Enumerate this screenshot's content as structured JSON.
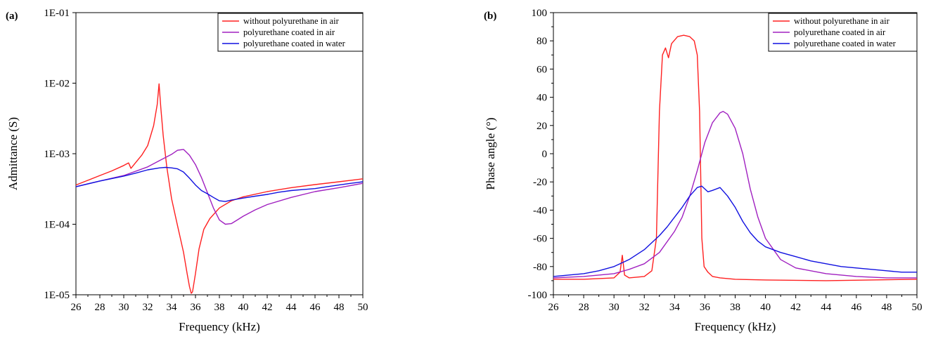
{
  "chart_data": [
    {
      "type": "line",
      "panel_label": "(a)",
      "xlabel": "Frequency (kHz)",
      "ylabel": "Admittance (S)",
      "xlim": [
        26,
        50
      ],
      "ylim": [
        1e-05,
        0.1
      ],
      "yscale": "log",
      "x_ticks": [
        "26",
        "28",
        "30",
        "32",
        "34",
        "36",
        "38",
        "40",
        "42",
        "44",
        "46",
        "48",
        "50"
      ],
      "y_ticks": [
        "1E-05",
        "1E-04",
        "1E-03",
        "1E-02",
        "1E-01"
      ],
      "legend_position": "top-right",
      "grid": false,
      "series": [
        {
          "name": "without polyurethane in air",
          "color": "#ff2020",
          "x": [
            26,
            27,
            28,
            29,
            30,
            30.4,
            30.5,
            30.6,
            31,
            31.5,
            32,
            32.5,
            32.8,
            32.95,
            33.1,
            33.3,
            33.6,
            34,
            34.5,
            35,
            35.3,
            35.5,
            35.65,
            35.75,
            35.85,
            36,
            36.3,
            36.7,
            37.2,
            38,
            39,
            40,
            42,
            44,
            46,
            48,
            50
          ],
          "y": [
            0.00036,
            0.00042,
            0.00049,
            0.00057,
            0.00068,
            0.00074,
            0.00068,
            0.00062,
            0.00075,
            0.00095,
            0.0013,
            0.0025,
            0.005,
            0.0098,
            0.0045,
            0.0018,
            0.00065,
            0.00023,
            9.5e-05,
            4e-05,
            2e-05,
            1.3e-05,
            1.05e-05,
            1.1e-05,
            1.4e-05,
            2e-05,
            4.5e-05,
            8.5e-05,
            0.00012,
            0.00017,
            0.000215,
            0.000245,
            0.00029,
            0.00033,
            0.000365,
            0.0004,
            0.00044
          ]
        },
        {
          "name": "polyurethane coated in air",
          "color": "#a020c0",
          "x": [
            26,
            28,
            30,
            32,
            33,
            34,
            34.5,
            35,
            35.5,
            36,
            36.5,
            37,
            37.5,
            38,
            38.5,
            39,
            39.5,
            40,
            41,
            42,
            44,
            46,
            48,
            50
          ],
          "y": [
            0.00034,
            0.00041,
            0.00049,
            0.00065,
            0.0008,
            0.00098,
            0.00112,
            0.00115,
            0.00095,
            0.0007,
            0.00046,
            0.00028,
            0.00017,
            0.000115,
            0.0001,
            0.000102,
            0.000115,
            0.00013,
            0.00016,
            0.00019,
            0.00024,
            0.00029,
            0.00033,
            0.00038
          ]
        },
        {
          "name": "polyurethane coated in water",
          "color": "#1010e0",
          "x": [
            26,
            28,
            30,
            31,
            32,
            33,
            33.5,
            34,
            34.5,
            35,
            35.5,
            36,
            36.5,
            37,
            37.5,
            38,
            38.5,
            39,
            40,
            41,
            42,
            43,
            44,
            45,
            46,
            47,
            48,
            49,
            50
          ],
          "y": [
            0.00034,
            0.00041,
            0.00048,
            0.00053,
            0.00059,
            0.00063,
            0.00064,
            0.00063,
            0.00061,
            0.00055,
            0.00045,
            0.00036,
            0.0003,
            0.00027,
            0.00024,
            0.000215,
            0.00021,
            0.00022,
            0.000235,
            0.00025,
            0.000265,
            0.000285,
            0.0003,
            0.00031,
            0.00032,
            0.00034,
            0.00036,
            0.00038,
            0.0004
          ]
        }
      ]
    },
    {
      "type": "line",
      "panel_label": "(b)",
      "xlabel": "Frequency (kHz)",
      "ylabel": "Phase angle (°)",
      "xlim": [
        26,
        50
      ],
      "ylim": [
        -100,
        100
      ],
      "x_ticks": [
        "26",
        "28",
        "30",
        "32",
        "34",
        "36",
        "38",
        "40",
        "42",
        "44",
        "46",
        "48",
        "50"
      ],
      "y_ticks": [
        "-100",
        "-80",
        "-60",
        "-40",
        "-20",
        "0",
        "20",
        "40",
        "60",
        "80",
        "100"
      ],
      "legend_position": "top-right",
      "grid": false,
      "series": [
        {
          "name": "without polyurethane in air",
          "color": "#ff2020",
          "x": [
            26,
            28,
            30,
            30.4,
            30.55,
            30.7,
            31,
            32,
            32.5,
            32.8,
            33.0,
            33.2,
            33.4,
            33.6,
            33.8,
            34.2,
            34.6,
            35.0,
            35.3,
            35.5,
            35.65,
            35.8,
            35.95,
            36.2,
            36.5,
            37,
            38,
            40,
            44,
            50
          ],
          "y": [
            -89,
            -89,
            -88,
            -84,
            -72,
            -86,
            -88,
            -87,
            -83,
            -60,
            30,
            70,
            75,
            68,
            78,
            83,
            84,
            83,
            80,
            70,
            30,
            -60,
            -80,
            -84,
            -87,
            -88,
            -89,
            -89.5,
            -90,
            -89
          ]
        },
        {
          "name": "polyurethane coated in air",
          "color": "#a020c0",
          "x": [
            26,
            28,
            30,
            31,
            32,
            33,
            34,
            34.5,
            35,
            35.5,
            36,
            36.5,
            37,
            37.2,
            37.5,
            38,
            38.5,
            39,
            39.5,
            40,
            41,
            42,
            44,
            46,
            48,
            50
          ],
          "y": [
            -88,
            -87,
            -85,
            -82,
            -78,
            -70,
            -55,
            -45,
            -30,
            -12,
            8,
            22,
            29,
            30,
            28,
            18,
            0,
            -25,
            -45,
            -60,
            -75,
            -81,
            -85,
            -87,
            -88,
            -88
          ]
        },
        {
          "name": "polyurethane coated in water",
          "color": "#1010e0",
          "x": [
            26,
            28,
            29,
            30,
            31,
            32,
            33,
            33.5,
            34,
            34.5,
            35,
            35.5,
            35.8,
            36.2,
            36.5,
            37,
            37.5,
            38,
            38.5,
            39,
            39.5,
            40,
            41,
            42,
            43,
            44,
            45,
            46,
            47,
            48,
            49,
            50
          ],
          "y": [
            -87,
            -85,
            -83,
            -80,
            -75,
            -68,
            -58,
            -52,
            -45,
            -38,
            -30,
            -24,
            -23,
            -27,
            -26,
            -24,
            -30,
            -38,
            -48,
            -56,
            -62,
            -66,
            -70,
            -73,
            -76,
            -78,
            -80,
            -81,
            -82,
            -83,
            -84,
            -84
          ]
        }
      ]
    }
  ]
}
